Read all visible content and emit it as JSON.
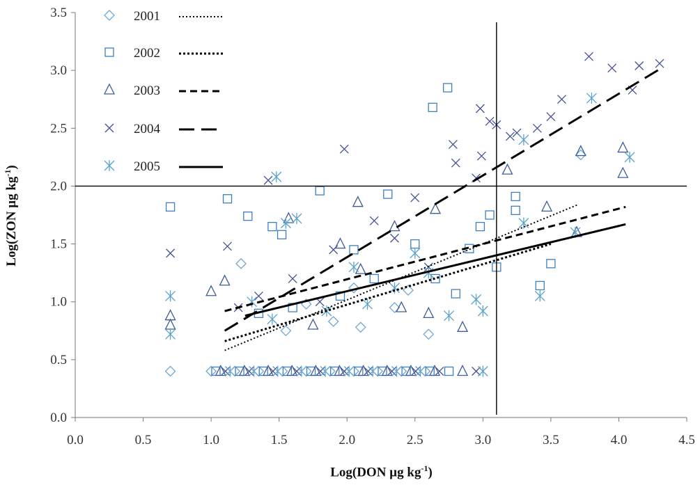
{
  "chart_data": {
    "type": "scatter",
    "xlabel_main": "Log(DON µg kg",
    "xlabel_sup": "-1",
    "xlabel_end": ")",
    "ylabel_main": "Log(ZON µg kg",
    "ylabel_sup": "-1",
    "ylabel_end": ")",
    "xlim": [
      0.0,
      4.5
    ],
    "ylim": [
      0.0,
      3.5
    ],
    "x_ticks": [
      "0.0",
      "0.5",
      "1.0",
      "1.5",
      "2.0",
      "2.5",
      "3.0",
      "3.5",
      "4.0",
      "4.5"
    ],
    "y_ticks": [
      "0.0",
      "0.5",
      "1.0",
      "1.5",
      "2.0",
      "2.5",
      "3.0",
      "3.5"
    ],
    "reference_lines": {
      "x": 3.1,
      "y": 2.0
    },
    "legend_placement": "top-left",
    "colors": {
      "2001": "#6fa8d6",
      "2002": "#3f7fc0",
      "2003": "#3e5c98",
      "2004": "#46509a",
      "2005": "#5aa3cc"
    },
    "series": [
      {
        "name": "2001",
        "marker": "diamond",
        "fit_style": "dotted-fine",
        "fit": {
          "x": [
            1.1,
            3.7
          ],
          "y": [
            0.58,
            1.84
          ]
        },
        "points": [
          [
            1.22,
            1.33
          ],
          [
            1.9,
            0.83
          ],
          [
            2.1,
            0.78
          ],
          [
            2.35,
            0.95
          ],
          [
            2.45,
            1.1
          ],
          [
            3.72,
            2.27
          ],
          [
            1.55,
            0.75
          ],
          [
            2.6,
            0.72
          ],
          [
            2.05,
            1.12
          ],
          [
            1.7,
            0.98
          ]
        ]
      },
      {
        "name": "2002",
        "marker": "square",
        "fit_style": "dotted-bold",
        "fit": {
          "x": [
            1.1,
            3.5
          ],
          "y": [
            0.66,
            1.5
          ]
        },
        "points": [
          [
            0.7,
            1.82
          ],
          [
            1.12,
            1.89
          ],
          [
            1.27,
            1.74
          ],
          [
            1.45,
            1.65
          ],
          [
            1.52,
            1.58
          ],
          [
            1.8,
            1.96
          ],
          [
            2.63,
            2.68
          ],
          [
            2.74,
            2.85
          ],
          [
            3.24,
            1.91
          ],
          [
            3.24,
            1.79
          ],
          [
            3.05,
            1.75
          ],
          [
            3.1,
            1.3
          ],
          [
            3.5,
            1.33
          ],
          [
            3.42,
            1.14
          ],
          [
            2.3,
            1.93
          ],
          [
            2.05,
            1.45
          ],
          [
            2.9,
            1.46
          ],
          [
            2.98,
            1.65
          ],
          [
            2.5,
            1.5
          ],
          [
            2.2,
            1.2
          ],
          [
            1.95,
            1.05
          ],
          [
            1.6,
            0.95
          ],
          [
            2.65,
            1.2
          ],
          [
            2.8,
            1.07
          ],
          [
            1.35,
            0.9
          ]
        ]
      },
      {
        "name": "2003",
        "marker": "triangle",
        "fit_style": "dashed-short",
        "fit": {
          "x": [
            1.1,
            4.05
          ],
          "y": [
            0.92,
            1.82
          ]
        },
        "points": [
          [
            0.7,
            0.88
          ],
          [
            0.7,
            0.8
          ],
          [
            1.0,
            1.09
          ],
          [
            1.1,
            1.18
          ],
          [
            1.57,
            1.72
          ],
          [
            2.08,
            1.86
          ],
          [
            3.18,
            2.14
          ],
          [
            3.47,
            1.82
          ],
          [
            3.72,
            2.3
          ],
          [
            4.03,
            2.33
          ],
          [
            4.03,
            2.11
          ],
          [
            3.69,
            1.6
          ],
          [
            2.65,
            1.8
          ],
          [
            2.35,
            1.65
          ],
          [
            2.85,
            0.78
          ],
          [
            2.6,
            0.9
          ],
          [
            2.1,
            1.28
          ],
          [
            1.75,
            0.8
          ],
          [
            1.95,
            1.5
          ],
          [
            2.4,
            0.95
          ]
        ]
      },
      {
        "name": "2004",
        "marker": "cross",
        "fit_style": "dashed-long",
        "fit": {
          "x": [
            1.1,
            4.3
          ],
          "y": [
            0.75,
            3.01
          ]
        },
        "points": [
          [
            0.7,
            1.42
          ],
          [
            1.12,
            1.48
          ],
          [
            1.42,
            2.05
          ],
          [
            1.98,
            2.32
          ],
          [
            2.78,
            2.36
          ],
          [
            2.95,
            2.07
          ],
          [
            2.98,
            2.67
          ],
          [
            3.05,
            2.56
          ],
          [
            2.99,
            2.26
          ],
          [
            3.2,
            2.43
          ],
          [
            3.25,
            2.46
          ],
          [
            3.4,
            2.5
          ],
          [
            3.5,
            2.6
          ],
          [
            3.58,
            2.75
          ],
          [
            3.78,
            3.12
          ],
          [
            3.95,
            3.02
          ],
          [
            4.15,
            3.04
          ],
          [
            4.3,
            3.06
          ],
          [
            4.1,
            2.83
          ],
          [
            3.1,
            2.53
          ],
          [
            2.8,
            2.2
          ],
          [
            2.5,
            1.9
          ],
          [
            2.2,
            1.7
          ],
          [
            1.9,
            1.45
          ],
          [
            1.6,
            1.2
          ],
          [
            1.35,
            1.05
          ],
          [
            1.2,
            0.95
          ],
          [
            2.35,
            1.55
          ],
          [
            2.6,
            1.3
          ],
          [
            1.8,
            1.0
          ]
        ]
      },
      {
        "name": "2005",
        "marker": "asterisk",
        "fit_style": "solid",
        "fit": {
          "x": [
            1.25,
            4.05
          ],
          "y": [
            0.88,
            1.67
          ]
        },
        "points": [
          [
            0.7,
            1.05
          ],
          [
            0.7,
            0.72
          ],
          [
            1.48,
            2.08
          ],
          [
            1.55,
            1.68
          ],
          [
            1.63,
            1.72
          ],
          [
            3.3,
            2.4
          ],
          [
            3.8,
            2.76
          ],
          [
            4.08,
            2.25
          ],
          [
            3.42,
            1.05
          ],
          [
            3.68,
            1.6
          ],
          [
            3.3,
            1.68
          ],
          [
            2.6,
            1.25
          ],
          [
            2.35,
            1.12
          ],
          [
            2.15,
            0.98
          ],
          [
            1.85,
            0.92
          ],
          [
            1.45,
            0.85
          ],
          [
            2.75,
            0.88
          ],
          [
            2.95,
            1.02
          ],
          [
            2.5,
            1.42
          ],
          [
            2.05,
            1.3
          ],
          [
            1.3,
            1.0
          ],
          [
            3.0,
            0.92
          ]
        ]
      }
    ],
    "floor_cluster": {
      "y": 0.4,
      "x_range": [
        1.0,
        2.7
      ]
    }
  }
}
